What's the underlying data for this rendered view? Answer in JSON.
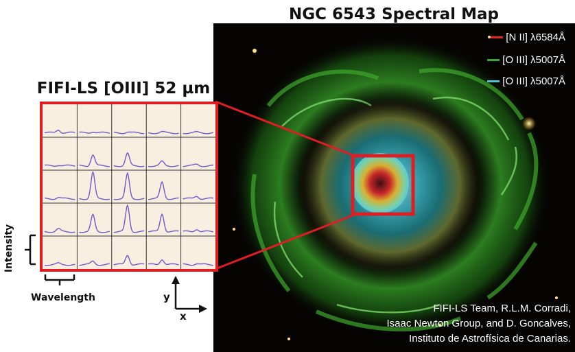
{
  "map": {
    "title": "NGC 6543 Spectral Map",
    "legend": [
      {
        "label": "[N II] λ6584Å",
        "color": "#e8262a"
      },
      {
        "label": "[O III] λ5007Å",
        "color": "#3fa635"
      },
      {
        "label": "[O III] λ5007Å",
        "color": "#4ec3d8"
      }
    ],
    "credits": [
      "FIFI-LS Team, R.L.M. Corradi,",
      "Isaac Newton Group, and D. Goncalves,",
      "Instituto de Astrofísica de Canarias."
    ]
  },
  "grid": {
    "title": "FIFI-LS [OIII] 52 µm",
    "rows": 5,
    "cols": 5,
    "line_color": "#6b58c9",
    "frame_color": "#e11d24",
    "peaks": [
      [
        0.12,
        0.05,
        0.03,
        0.03,
        0.02
      ],
      [
        0.03,
        0.4,
        0.45,
        0.15,
        0.05
      ],
      [
        0.05,
        0.95,
        0.9,
        0.6,
        0.1
      ],
      [
        0.1,
        0.6,
        0.95,
        0.65,
        0.1
      ],
      [
        0.04,
        0.12,
        0.35,
        0.2,
        0.04
      ]
    ]
  },
  "axes": {
    "intensity": "Intensity",
    "wavelength": "Wavelength",
    "y": "y",
    "x": "x"
  }
}
